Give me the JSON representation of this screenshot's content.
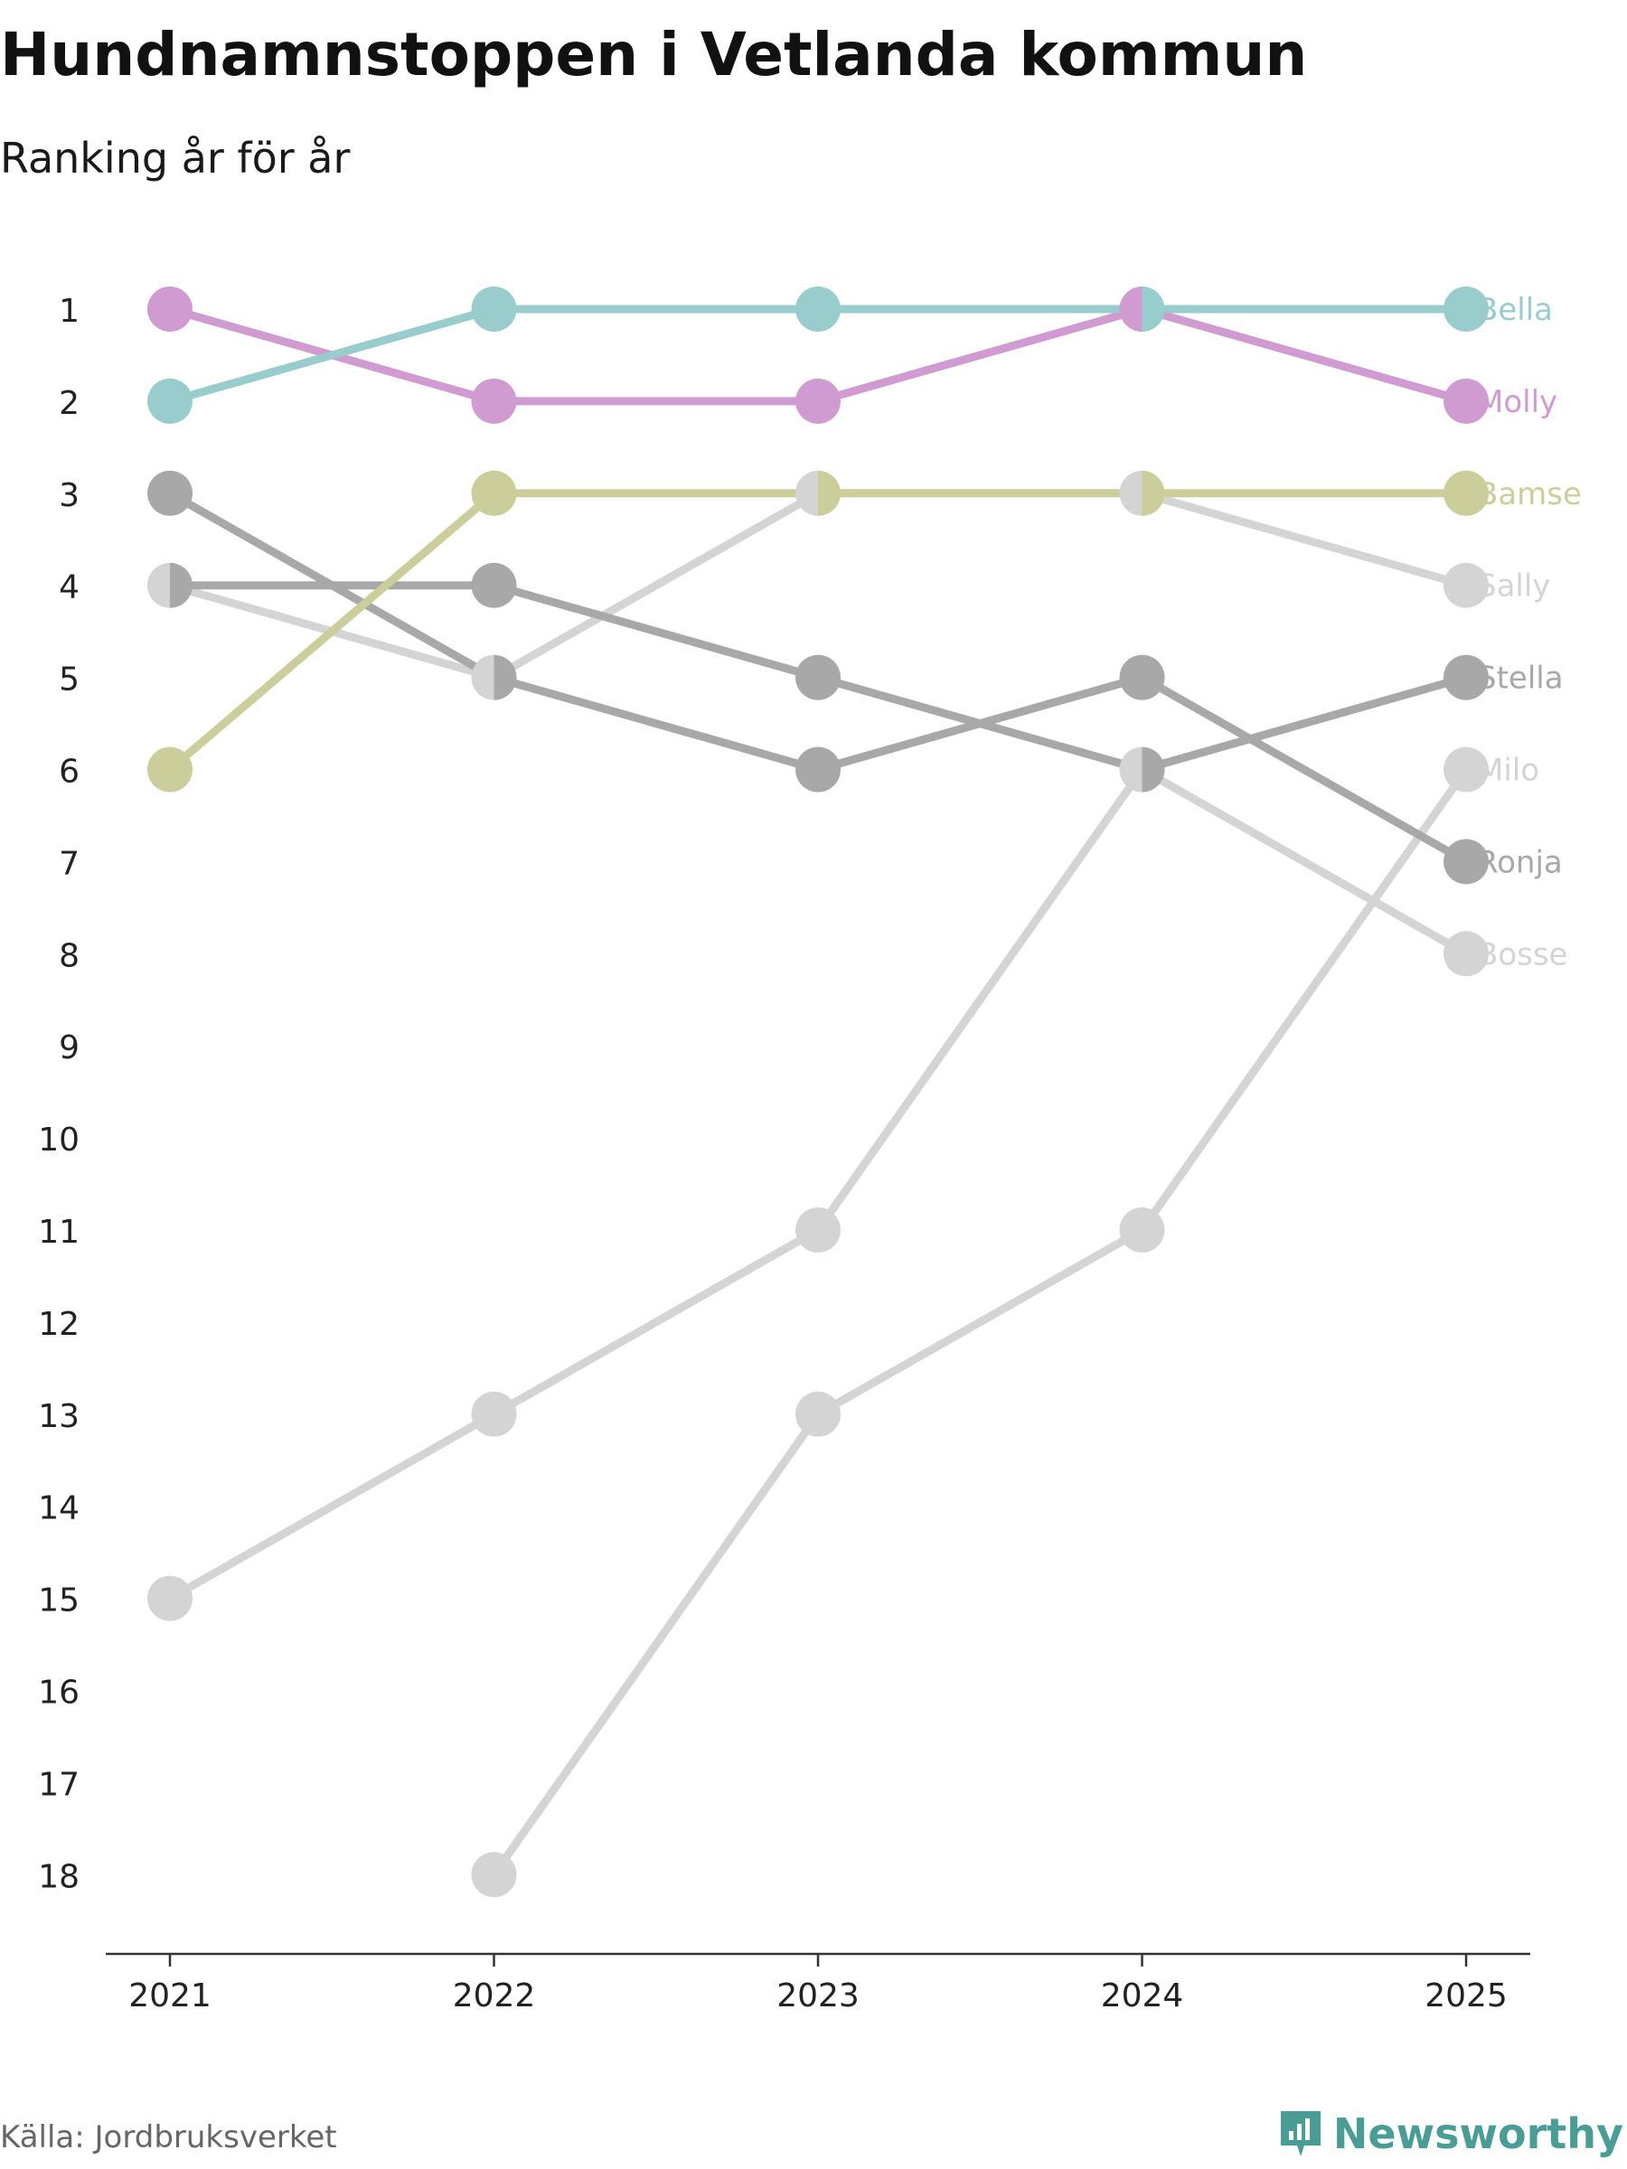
{
  "chart_data": {
    "type": "line",
    "title": "Hundnamnstoppen i Vetlanda kommun",
    "subtitle": "Ranking år för år",
    "xlabel": "",
    "ylabel": "",
    "categories": [
      "2021",
      "2022",
      "2023",
      "2024",
      "2025"
    ],
    "y_ticks": [
      "1",
      "2",
      "3",
      "4",
      "5",
      "6",
      "7",
      "8",
      "9",
      "10",
      "11",
      "12",
      "13",
      "14",
      "15",
      "16",
      "17",
      "18"
    ],
    "ylim": [
      1,
      18
    ],
    "y_inverted": true,
    "series": [
      {
        "name": "Bosse",
        "color": "#d4d4d4",
        "values": [
          15,
          13,
          11,
          6,
          8
        ]
      },
      {
        "name": "Milo",
        "color": "#d4d4d4",
        "values": [
          null,
          18,
          13,
          11,
          6
        ]
      },
      {
        "name": "Sally",
        "color": "#d4d4d4",
        "values": [
          4,
          5,
          3,
          3,
          4
        ]
      },
      {
        "name": "Ronja",
        "color": "#a8a8a8",
        "values": [
          3,
          5,
          6,
          5,
          7
        ]
      },
      {
        "name": "Stella",
        "color": "#a8a8a8",
        "values": [
          4,
          4,
          5,
          6,
          5
        ]
      },
      {
        "name": "Bamse",
        "color": "#cbcd9a",
        "values": [
          6,
          3,
          3,
          3,
          3
        ]
      },
      {
        "name": "Molly",
        "color": "#cf9bd0",
        "values": [
          1,
          2,
          2,
          1,
          2
        ]
      },
      {
        "name": "Bella",
        "color": "#99cccc",
        "values": [
          2,
          1,
          1,
          1,
          1
        ]
      }
    ]
  },
  "source": "Källa: Jordbruksverket",
  "brand": {
    "name": "Newsworthy",
    "icon": "newsworthy-logo-icon",
    "color": "#4a9d95"
  }
}
